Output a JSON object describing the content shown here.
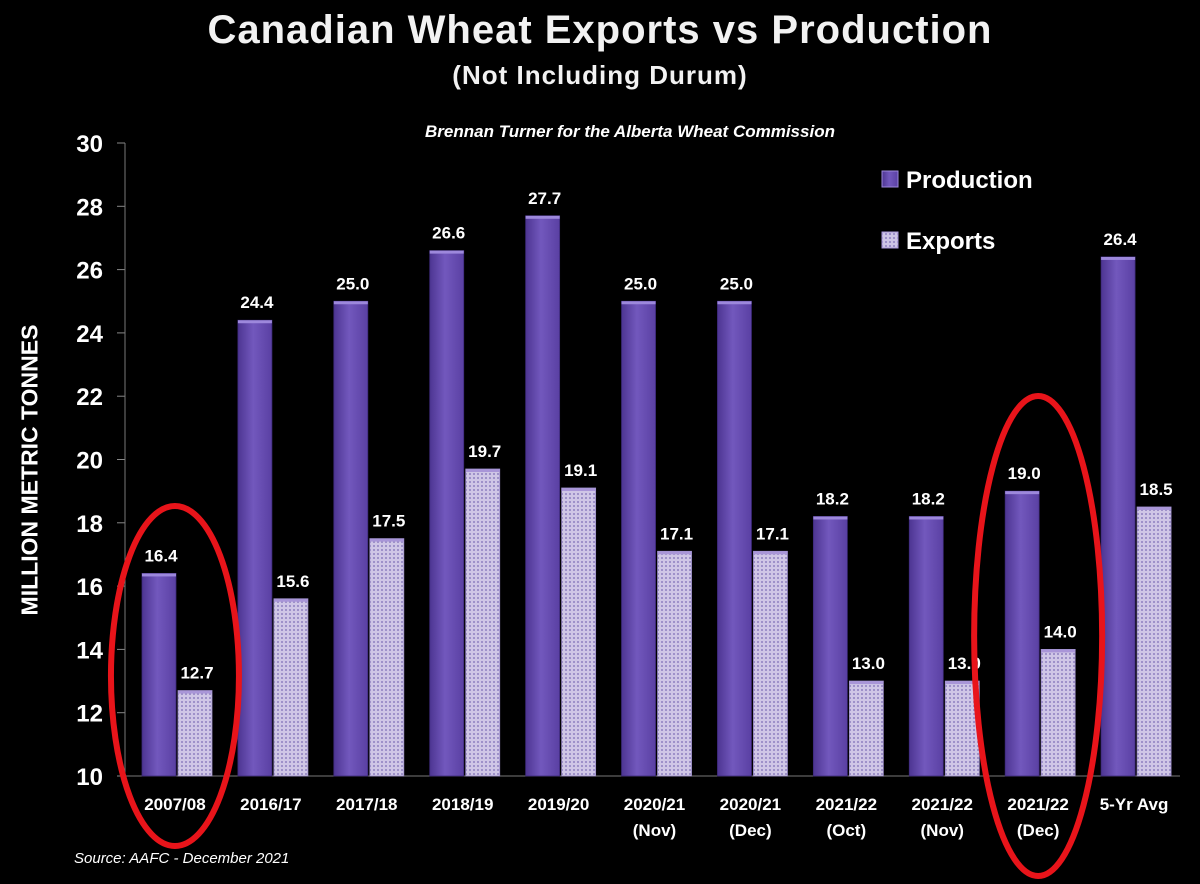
{
  "chart_data": {
    "type": "bar",
    "title": "Canadian Wheat Exports vs Production",
    "subtitle": "(Not Including Durum)",
    "credit": "Brennan Turner for the Alberta Wheat Commission",
    "source": "Source: AAFC -  December 2021",
    "ylabel": "MILLION METRIC TONNES",
    "ylim": [
      10,
      30
    ],
    "yticks": [
      10,
      12,
      14,
      16,
      18,
      20,
      22,
      24,
      26,
      28,
      30
    ],
    "grid": false,
    "legend_position": "top-right",
    "categories": [
      [
        "2007/08"
      ],
      [
        "2016/17"
      ],
      [
        "2017/18"
      ],
      [
        "2018/19"
      ],
      [
        "2019/20"
      ],
      [
        "2020/21",
        "(Nov)"
      ],
      [
        "2020/21",
        "(Dec)"
      ],
      [
        "2021/22",
        "(Oct)"
      ],
      [
        "2021/22",
        "(Nov)"
      ],
      [
        "2021/22",
        "(Dec)"
      ],
      [
        "5-Yr Avg"
      ]
    ],
    "series": [
      {
        "name": "Production",
        "values": [
          16.4,
          24.4,
          25.0,
          26.6,
          27.7,
          25.0,
          25.0,
          18.2,
          18.2,
          19.0,
          26.4
        ]
      },
      {
        "name": "Exports",
        "values": [
          12.7,
          15.6,
          17.5,
          19.7,
          19.1,
          17.1,
          17.1,
          13.0,
          13.0,
          14.0,
          18.5
        ]
      }
    ],
    "highlighted_categories": [
      0,
      9
    ],
    "colors": {
      "production": "#6a4fb0",
      "exports": "#d3cbe8",
      "highlight": "#e8141a"
    }
  }
}
